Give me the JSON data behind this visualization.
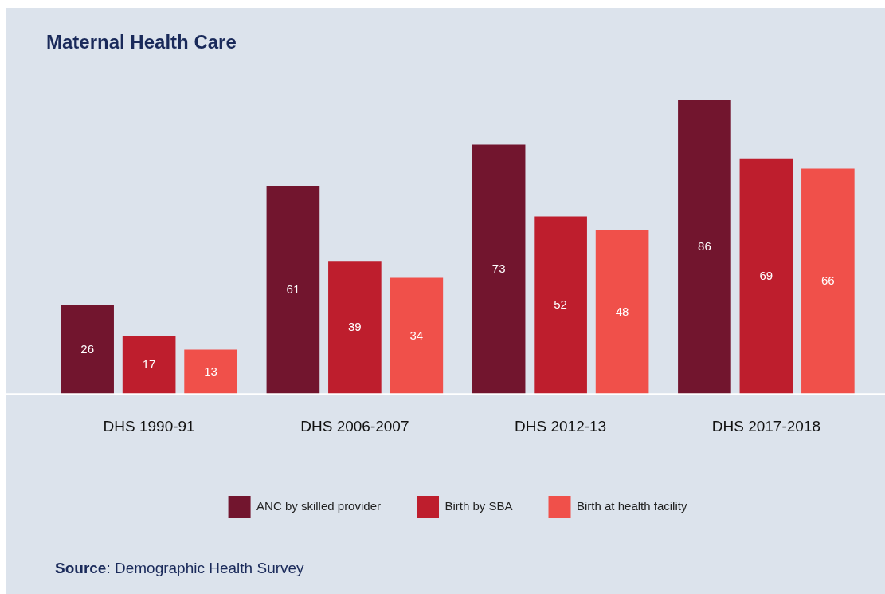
{
  "chart_data": {
    "type": "bar",
    "title": "Maternal Health Care",
    "categories": [
      "DHS 1990-91",
      "DHS 2006-2007",
      "DHS 2012-13",
      "DHS 2017-2018"
    ],
    "series": [
      {
        "name": "ANC by skilled provider",
        "color": "#72152e",
        "values": [
          26,
          61,
          73,
          86
        ]
      },
      {
        "name": "Birth by SBA",
        "color": "#be1e2d",
        "values": [
          17,
          39,
          52,
          69
        ]
      },
      {
        "name": "Birth at health facility",
        "color": "#f0504a",
        "values": [
          13,
          34,
          48,
          66
        ]
      }
    ],
    "data_labels": true,
    "grid": false,
    "legend": "bottom",
    "tick_labels": "x",
    "annotations": [
      "Source: Demographic Health Survey"
    ]
  }
}
